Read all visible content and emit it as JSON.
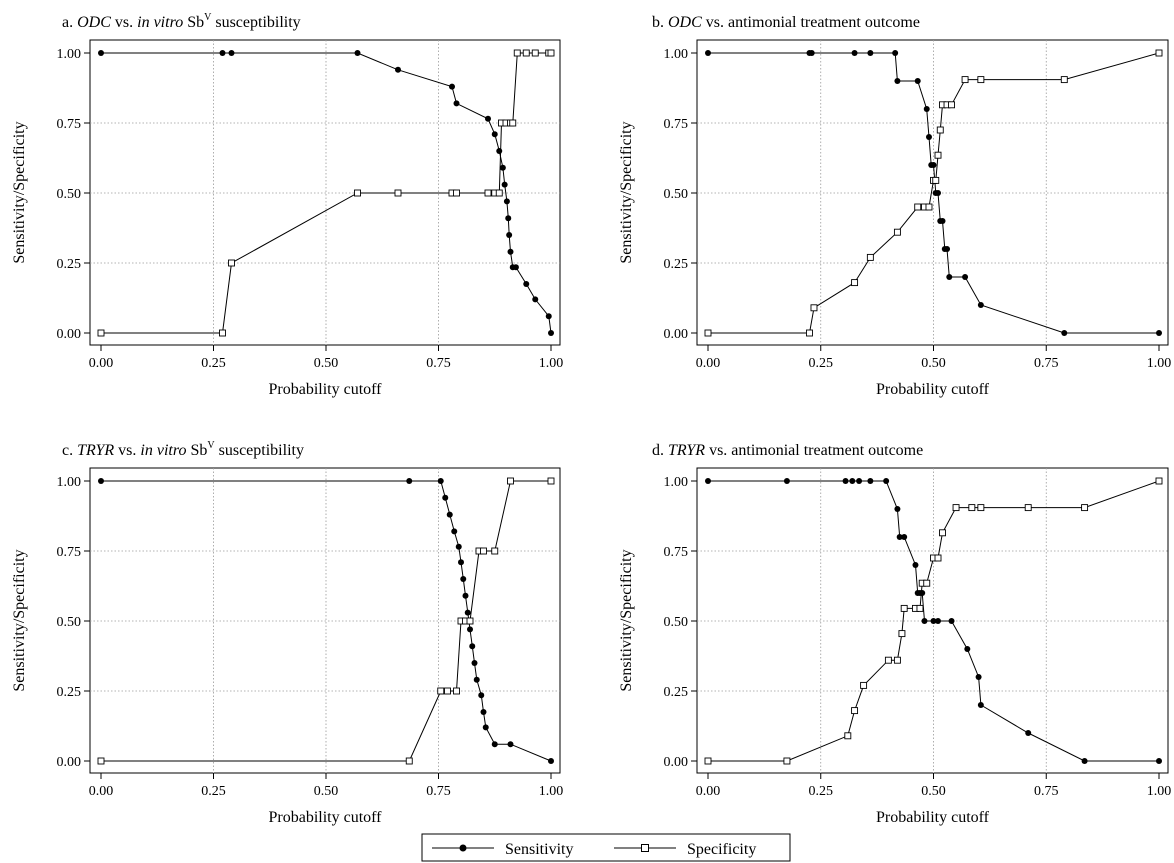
{
  "panel_titles": [
    {
      "prefix": "a. ",
      "italic1": "ODC",
      "mid": " vs. ",
      "italic2": "in vitro",
      "tail": " Sb",
      "sup": "V",
      "end": " susceptibility"
    },
    {
      "prefix": "b. ",
      "italic1": "ODC",
      "mid": " vs. antimonial treatment outcome",
      "italic2": "",
      "tail": "",
      "sup": "",
      "end": ""
    },
    {
      "prefix": "c. ",
      "italic1": "TRYR",
      "mid": " vs. ",
      "italic2": "in vitro",
      "tail": " Sb",
      "sup": "V",
      "end": " susceptibility"
    },
    {
      "prefix": "d. ",
      "italic1": "TRYR",
      "mid": " vs. antimonial treatment outcome",
      "italic2": "",
      "tail": "",
      "sup": "",
      "end": ""
    }
  ],
  "legend": {
    "sensitivity": "Sensitivity",
    "specificity": "Specificity"
  },
  "chart_data": [
    {
      "type": "line",
      "title": "a. ODC vs. in vitro SbV susceptibility",
      "xlabel": "Probability cutoff",
      "ylabel": "Sensitivity/Specificity",
      "xlim": [
        0,
        1
      ],
      "ylim": [
        0,
        1
      ],
      "x_ticks": [
        "0.00",
        "0.25",
        "0.50",
        "0.75",
        "1.00"
      ],
      "y_ticks": [
        "0.00",
        "0.25",
        "0.50",
        "0.75",
        "1.00"
      ],
      "grid": true,
      "series": [
        {
          "name": "Sensitivity",
          "x": [
            0.0,
            0.27,
            0.29,
            0.57,
            0.66,
            0.78,
            0.79,
            0.86,
            0.875,
            0.885,
            0.893,
            0.897,
            0.902,
            0.905,
            0.907,
            0.91,
            0.915,
            0.922,
            0.945,
            0.965,
            0.995,
            1.0
          ],
          "y": [
            1.0,
            1.0,
            1.0,
            1.0,
            0.94,
            0.88,
            0.82,
            0.765,
            0.71,
            0.65,
            0.59,
            0.53,
            0.47,
            0.41,
            0.35,
            0.29,
            0.235,
            0.235,
            0.175,
            0.12,
            0.06,
            0.0
          ]
        },
        {
          "name": "Specificity",
          "x": [
            0.0,
            0.27,
            0.29,
            0.57,
            0.66,
            0.78,
            0.79,
            0.86,
            0.875,
            0.885,
            0.89,
            0.9,
            0.91,
            0.915,
            0.925,
            0.945,
            0.965,
            0.995,
            1.0
          ],
          "y": [
            0.0,
            0.0,
            0.25,
            0.5,
            0.5,
            0.5,
            0.5,
            0.5,
            0.5,
            0.5,
            0.75,
            0.75,
            0.75,
            0.75,
            1.0,
            1.0,
            1.0,
            1.0,
            1.0
          ]
        }
      ]
    },
    {
      "type": "line",
      "title": "b. ODC vs. antimonial treatment outcome",
      "xlabel": "Probability cutoff",
      "ylabel": "Sensitivity/Specificity",
      "xlim": [
        0,
        1
      ],
      "ylim": [
        0,
        1
      ],
      "x_ticks": [
        "0.00",
        "0.25",
        "0.50",
        "0.75",
        "1.00"
      ],
      "y_ticks": [
        "0.00",
        "0.25",
        "0.50",
        "0.75",
        "1.00"
      ],
      "grid": true,
      "series": [
        {
          "name": "Sensitivity",
          "x": [
            0.0,
            0.225,
            0.23,
            0.325,
            0.36,
            0.415,
            0.42,
            0.465,
            0.485,
            0.49,
            0.495,
            0.5,
            0.505,
            0.51,
            0.515,
            0.52,
            0.525,
            0.53,
            0.535,
            0.57,
            0.605,
            0.79,
            1.0
          ],
          "y": [
            1.0,
            1.0,
            1.0,
            1.0,
            1.0,
            1.0,
            0.9,
            0.9,
            0.8,
            0.7,
            0.6,
            0.6,
            0.5,
            0.5,
            0.4,
            0.4,
            0.3,
            0.3,
            0.2,
            0.2,
            0.1,
            0.0,
            0.0
          ]
        },
        {
          "name": "Specificity",
          "x": [
            0.0,
            0.225,
            0.235,
            0.325,
            0.36,
            0.42,
            0.465,
            0.48,
            0.49,
            0.5,
            0.505,
            0.51,
            0.515,
            0.52,
            0.53,
            0.54,
            0.57,
            0.605,
            0.79,
            1.0
          ],
          "y": [
            0.0,
            0.0,
            0.09,
            0.18,
            0.27,
            0.36,
            0.45,
            0.45,
            0.45,
            0.545,
            0.545,
            0.635,
            0.725,
            0.815,
            0.815,
            0.815,
            0.905,
            0.905,
            0.905,
            1.0
          ]
        }
      ]
    },
    {
      "type": "line",
      "title": "c. TRYR vs. in vitro SbV susceptibility",
      "xlabel": "Probability cutoff",
      "ylabel": "Sensitivity/Specificity",
      "xlim": [
        0,
        1
      ],
      "ylim": [
        0,
        1
      ],
      "x_ticks": [
        "0.00",
        "0.25",
        "0.50",
        "0.75",
        "1.00"
      ],
      "y_ticks": [
        "0.00",
        "0.25",
        "0.50",
        "0.75",
        "1.00"
      ],
      "grid": true,
      "series": [
        {
          "name": "Sensitivity",
          "x": [
            0.0,
            0.685,
            0.755,
            0.765,
            0.775,
            0.785,
            0.795,
            0.8,
            0.805,
            0.81,
            0.815,
            0.82,
            0.825,
            0.83,
            0.835,
            0.845,
            0.85,
            0.855,
            0.875,
            0.91,
            1.0
          ],
          "y": [
            1.0,
            1.0,
            1.0,
            0.94,
            0.88,
            0.82,
            0.765,
            0.71,
            0.65,
            0.59,
            0.53,
            0.47,
            0.41,
            0.35,
            0.29,
            0.235,
            0.175,
            0.12,
            0.06,
            0.06,
            0.0
          ]
        },
        {
          "name": "Specificity",
          "x": [
            0.0,
            0.685,
            0.755,
            0.77,
            0.79,
            0.8,
            0.81,
            0.82,
            0.84,
            0.85,
            0.875,
            0.91,
            1.0
          ],
          "y": [
            0.0,
            0.0,
            0.25,
            0.25,
            0.25,
            0.5,
            0.5,
            0.5,
            0.75,
            0.75,
            0.75,
            1.0,
            1.0
          ]
        }
      ]
    },
    {
      "type": "line",
      "title": "d. TRYR vs. antimonial treatment outcome",
      "xlabel": "Probability cutoff",
      "ylabel": "Sensitivity/Specificity",
      "xlim": [
        0,
        1
      ],
      "ylim": [
        0,
        1
      ],
      "x_ticks": [
        "0.00",
        "0.25",
        "0.50",
        "0.75",
        "1.00"
      ],
      "y_ticks": [
        "0.00",
        "0.25",
        "0.50",
        "0.75",
        "1.00"
      ],
      "grid": true,
      "series": [
        {
          "name": "Sensitivity",
          "x": [
            0.0,
            0.175,
            0.305,
            0.32,
            0.335,
            0.36,
            0.395,
            0.42,
            0.425,
            0.435,
            0.46,
            0.465,
            0.47,
            0.475,
            0.48,
            0.5,
            0.51,
            0.54,
            0.575,
            0.6,
            0.605,
            0.71,
            0.835,
            1.0
          ],
          "y": [
            1.0,
            1.0,
            1.0,
            1.0,
            1.0,
            1.0,
            1.0,
            0.9,
            0.8,
            0.8,
            0.7,
            0.6,
            0.6,
            0.6,
            0.5,
            0.5,
            0.5,
            0.5,
            0.4,
            0.3,
            0.2,
            0.1,
            0.0,
            0.0
          ]
        },
        {
          "name": "Specificity",
          "x": [
            0.0,
            0.175,
            0.31,
            0.325,
            0.345,
            0.4,
            0.42,
            0.43,
            0.435,
            0.46,
            0.47,
            0.475,
            0.485,
            0.5,
            0.51,
            0.52,
            0.55,
            0.585,
            0.605,
            0.71,
            0.835,
            1.0
          ],
          "y": [
            0.0,
            0.0,
            0.09,
            0.18,
            0.27,
            0.36,
            0.36,
            0.455,
            0.545,
            0.545,
            0.545,
            0.635,
            0.635,
            0.725,
            0.725,
            0.815,
            0.905,
            0.905,
            0.905,
            0.905,
            0.905,
            1.0
          ]
        }
      ]
    }
  ]
}
